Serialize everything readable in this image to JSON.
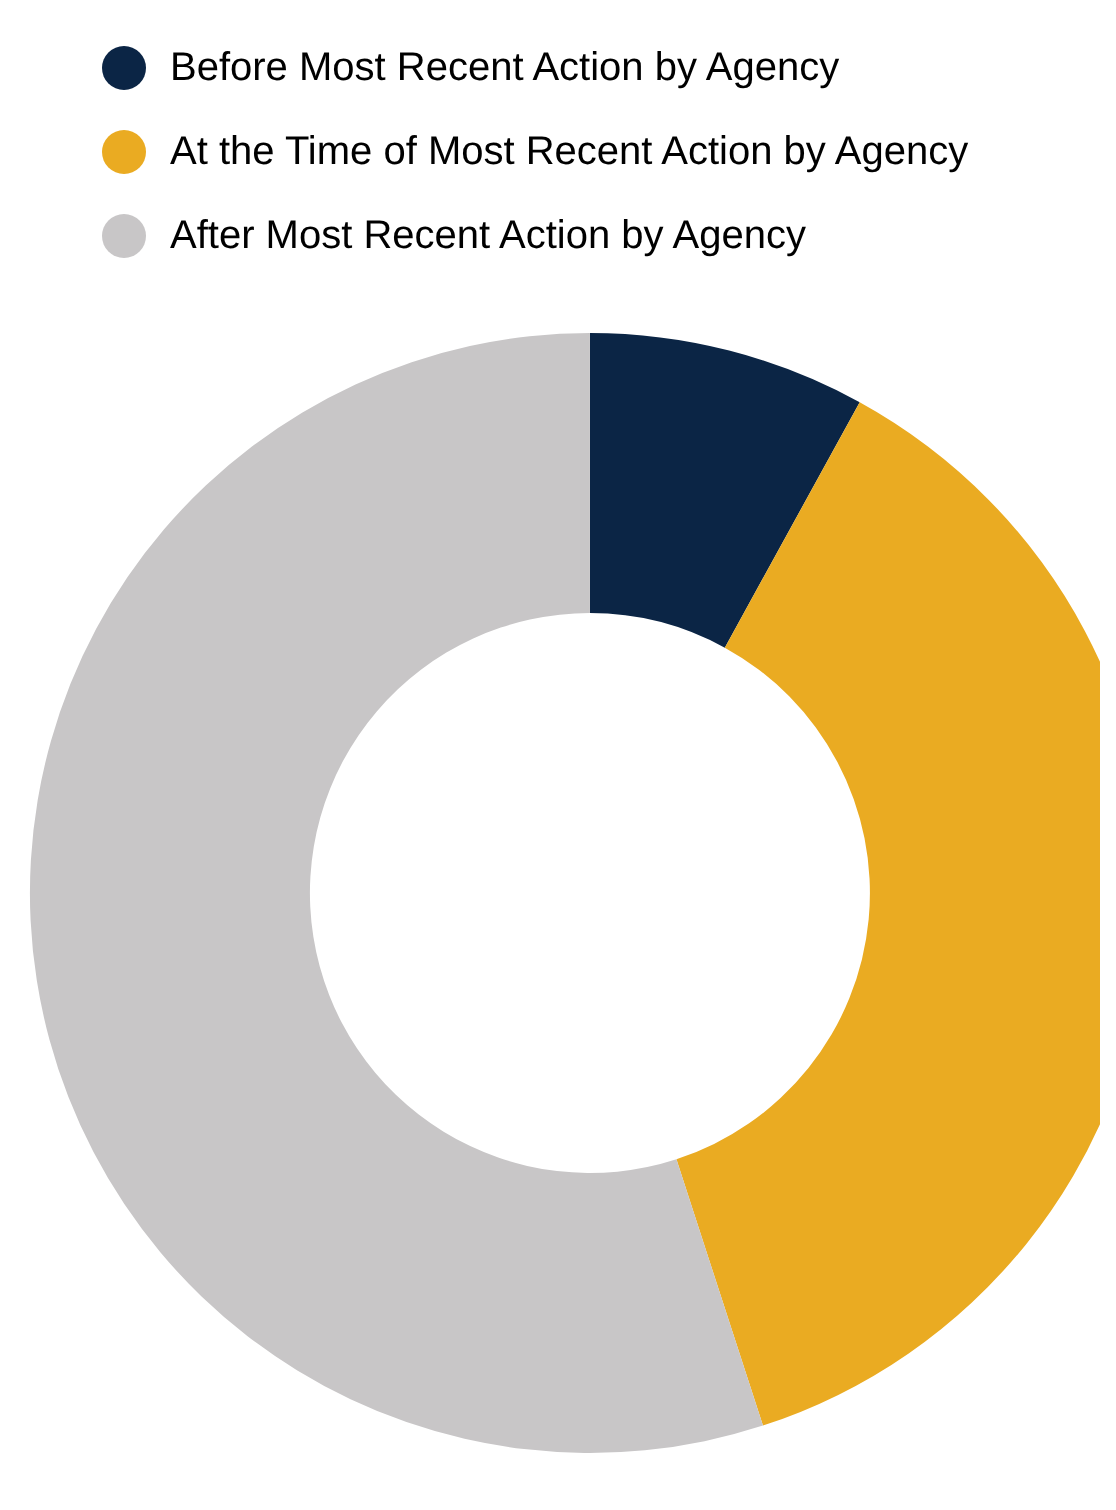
{
  "chart_data": {
    "type": "donut",
    "categories": [
      "Before Most Recent Action by Agency",
      "At the Time of Most Recent Action by Agency",
      "After Most Recent Action by Agency"
    ],
    "values": [
      8,
      37,
      55
    ],
    "colors": [
      "#0b2545",
      "#eaab22",
      "#c8c6c7"
    ],
    "legend": "top left"
  }
}
